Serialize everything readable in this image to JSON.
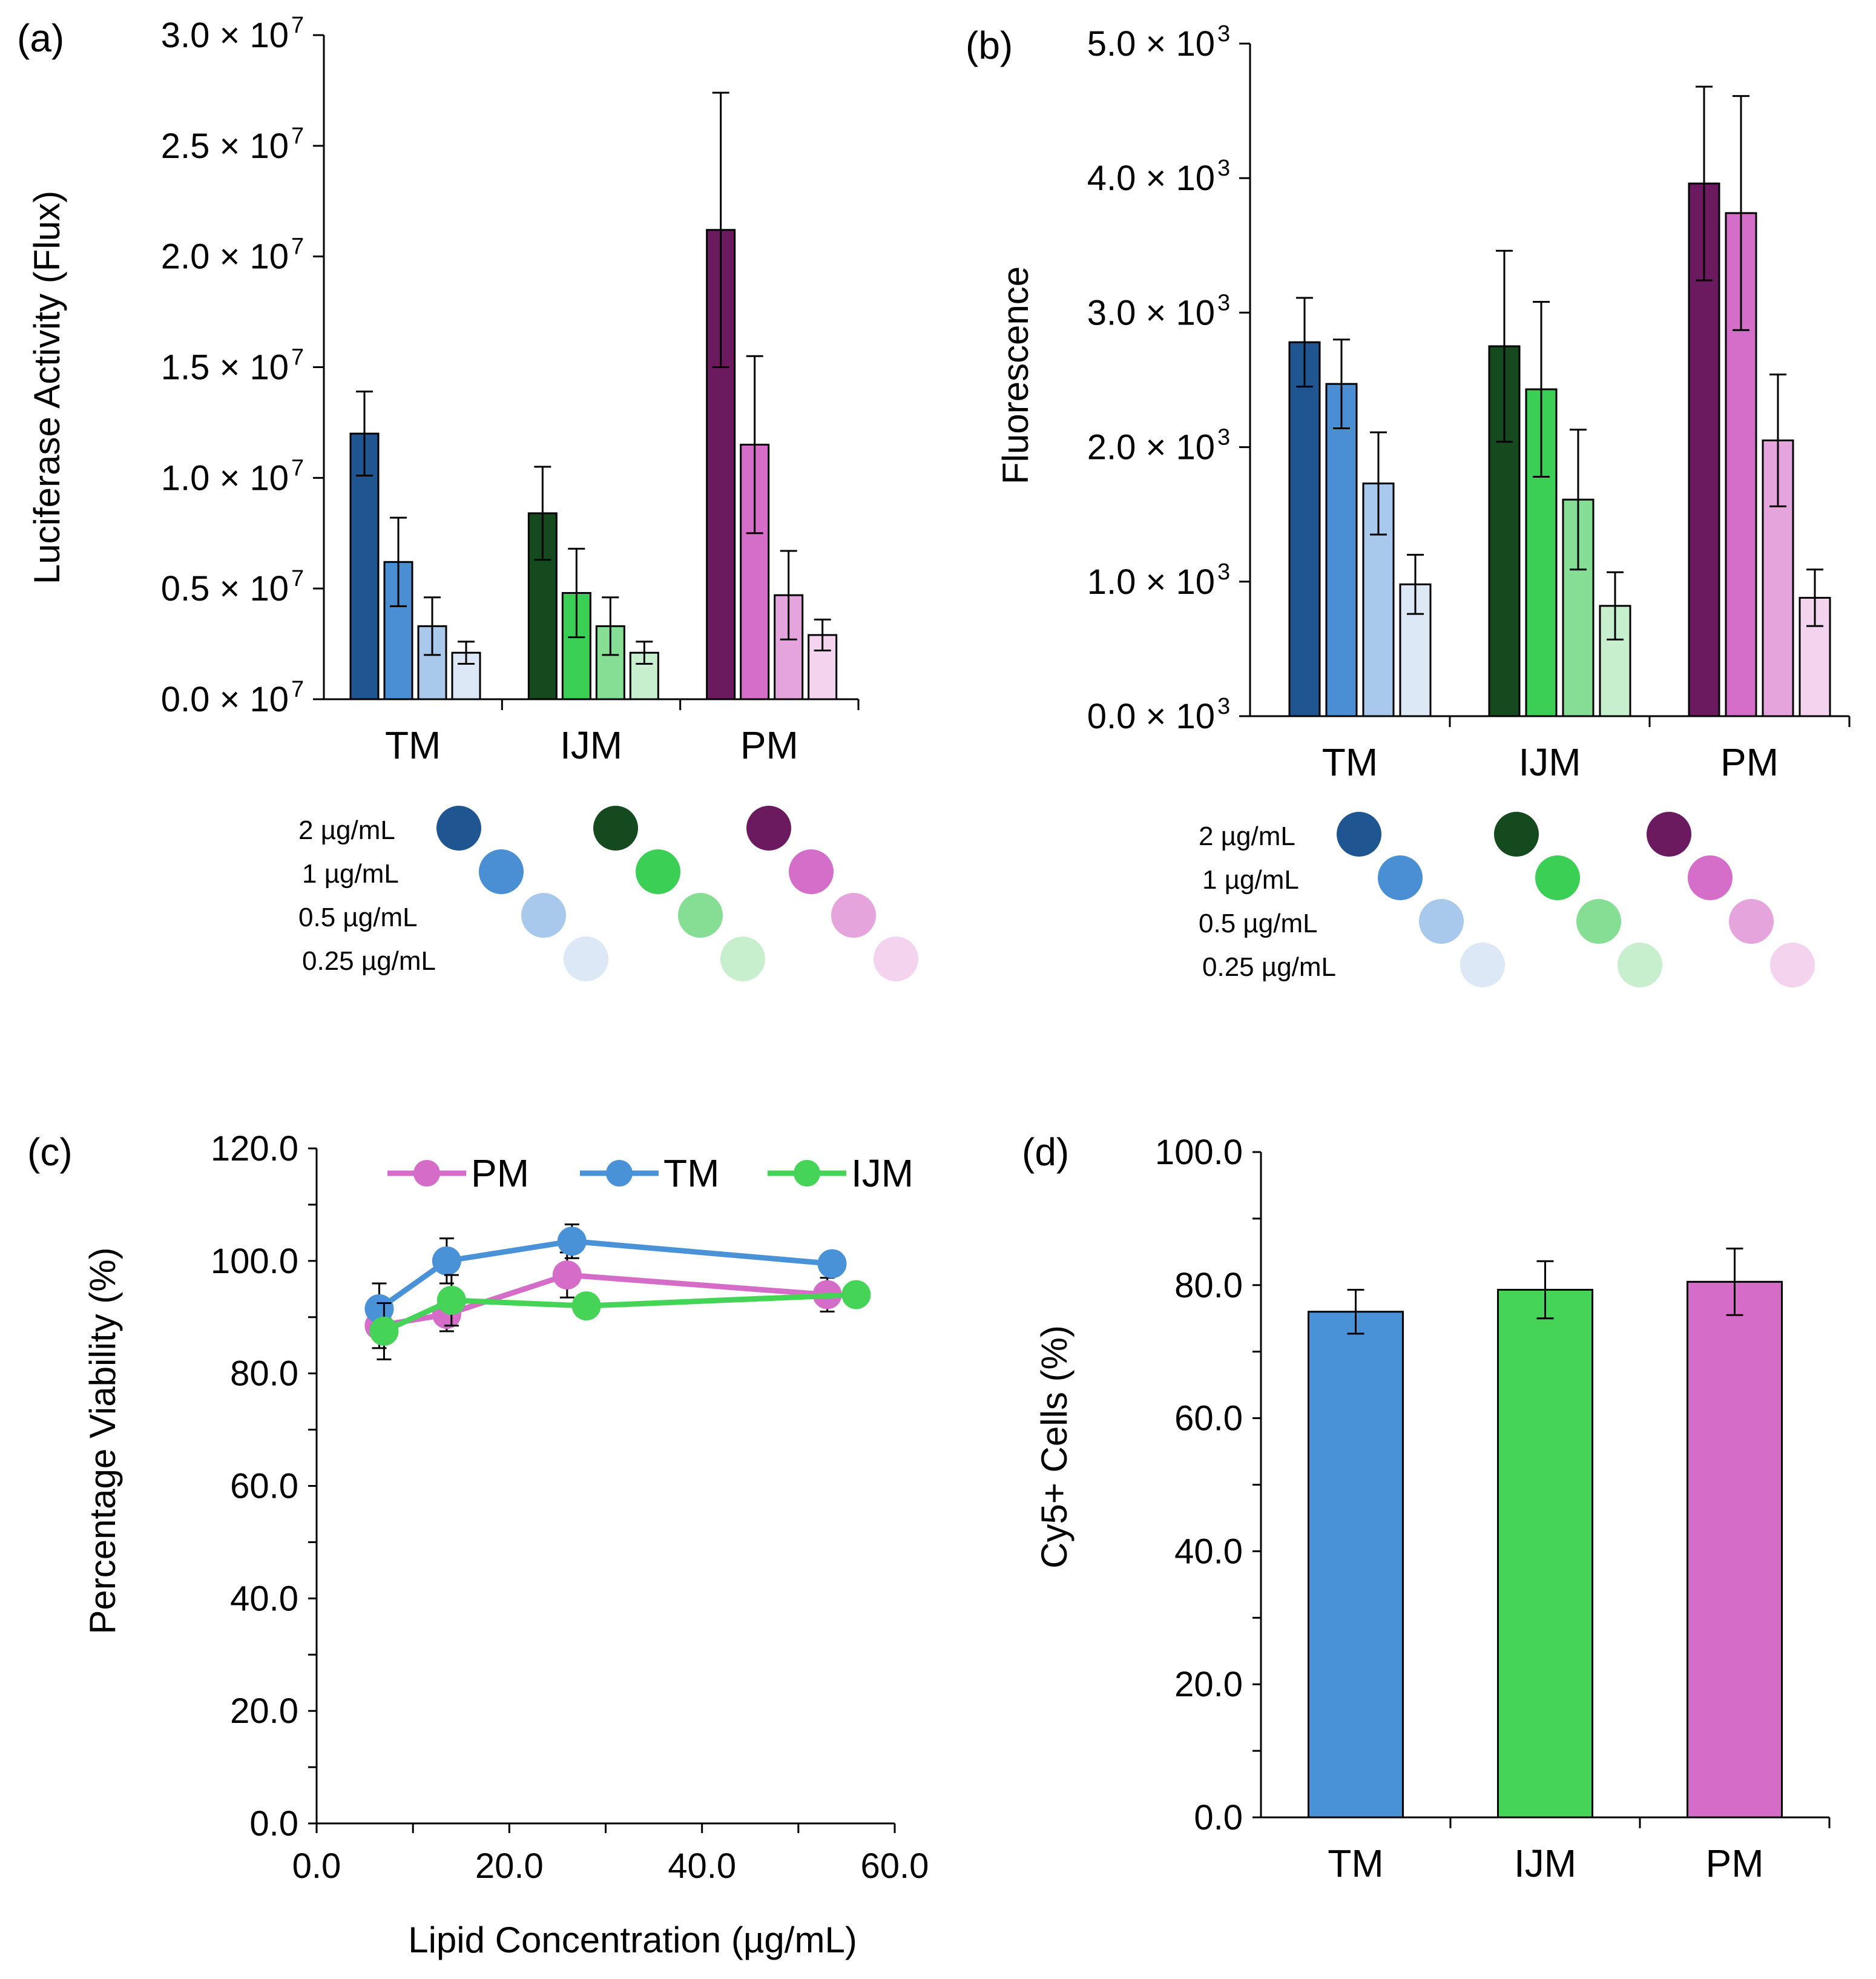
{
  "palette": {
    "TM": [
      "#1f5591",
      "#4a8fd4",
      "#a8c8ec",
      "#dce8f5"
    ],
    "IJM": [
      "#144a1e",
      "#3ccf55",
      "#86de94",
      "#c8efcd"
    ],
    "PM": [
      "#6b1a5f",
      "#d46ec8",
      "#e6a4dc",
      "#f3d3ee"
    ],
    "single": {
      "TM": "#4a92d8",
      "IJM": "#45d358",
      "PM": "#d46cc8"
    }
  },
  "legend_ab": {
    "labels": [
      "2 µg/mL",
      "1 µg/mL",
      "0.5 µg/mL",
      "0.25 µg/mL"
    ]
  },
  "chart_data": [
    {
      "panel": "(a)",
      "type": "bar",
      "ylabel": "Luciferase Activity (Flux)",
      "ylim": [
        0,
        3.0
      ],
      "yticks": [
        0.0,
        0.5,
        1.0,
        1.5,
        2.0,
        2.5,
        3.0
      ],
      "ytick_labels": [
        "0.0 × 10",
        "0.5 × 10",
        "1.0 × 10",
        "1.5 × 10",
        "2.0 × 10",
        "2.5 × 10",
        "3.0 × 10"
      ],
      "ytick_exponent": "7",
      "categories": [
        "TM",
        "IJM",
        "PM"
      ],
      "series": [
        {
          "name": "2 µg/mL",
          "values": [
            1.2,
            0.84,
            2.12
          ],
          "errors": [
            0.19,
            0.21,
            0.62
          ]
        },
        {
          "name": "1 µg/mL",
          "values": [
            0.62,
            0.48,
            1.15
          ],
          "errors": [
            0.2,
            0.2,
            0.4
          ]
        },
        {
          "name": "0.5 µg/mL",
          "values": [
            0.33,
            0.33,
            0.47
          ],
          "errors": [
            0.13,
            0.13,
            0.2
          ]
        },
        {
          "name": "0.25 µg/mL",
          "values": [
            0.21,
            0.21,
            0.29
          ],
          "errors": [
            0.05,
            0.05,
            0.07
          ]
        }
      ]
    },
    {
      "panel": "(b)",
      "type": "bar",
      "ylabel": "Fluorescence",
      "ylim": [
        0,
        5.0
      ],
      "yticks": [
        0.0,
        1.0,
        2.0,
        3.0,
        4.0,
        5.0
      ],
      "ytick_labels": [
        "0.0 × 10",
        "1.0 × 10",
        "2.0 × 10",
        "3.0 × 10",
        "4.0 × 10",
        "5.0 × 10"
      ],
      "ytick_exponent": "3",
      "categories": [
        "TM",
        "IJM",
        "PM"
      ],
      "series": [
        {
          "name": "2 µg/mL",
          "values": [
            2.78,
            2.75,
            3.96
          ],
          "errors": [
            0.33,
            0.71,
            0.72
          ]
        },
        {
          "name": "1 µg/mL",
          "values": [
            2.47,
            2.43,
            3.74
          ],
          "errors": [
            0.33,
            0.65,
            0.87
          ]
        },
        {
          "name": "0.5 µg/mL",
          "values": [
            1.73,
            1.61,
            2.05
          ],
          "errors": [
            0.38,
            0.52,
            0.49
          ]
        },
        {
          "name": "0.25 µg/mL",
          "values": [
            0.98,
            0.82,
            0.88
          ],
          "errors": [
            0.22,
            0.25,
            0.21
          ]
        }
      ]
    },
    {
      "panel": "(c)",
      "type": "line",
      "xlabel": "Lipid Concentration (µg/mL)",
      "ylabel": "Percentage Viability (%)",
      "xlim": [
        0,
        60
      ],
      "ylim": [
        0,
        120
      ],
      "xticks": [
        0.0,
        20.0,
        40.0,
        60.0
      ],
      "xtick_labels": [
        "0.0",
        "20.0",
        "40.0",
        "60.0"
      ],
      "yticks": [
        0.0,
        20.0,
        40.0,
        60.0,
        80.0,
        100.0,
        120.0
      ],
      "ytick_labels": [
        "0.0",
        "20.0",
        "40.0",
        "60.0",
        "80.0",
        "100.0",
        "120.0"
      ],
      "legend": [
        "PM",
        "TM",
        "IJM"
      ],
      "series": [
        {
          "name": "PM",
          "x": [
            6.5,
            13.5,
            26.0,
            53.0
          ],
          "y": [
            88.5,
            90.5,
            97.5,
            94.0
          ],
          "errors": [
            4.0,
            3.0,
            4.0,
            3.0
          ]
        },
        {
          "name": "TM",
          "x": [
            6.5,
            13.5,
            26.5,
            53.5
          ],
          "y": [
            91.5,
            100.0,
            103.5,
            99.5
          ],
          "errors": [
            4.5,
            4.0,
            3.0,
            2.0
          ]
        },
        {
          "name": "IJM",
          "x": [
            7.0,
            14.0,
            28.0,
            56.0
          ],
          "y": [
            87.5,
            93.0,
            92.0,
            94.0
          ],
          "errors": [
            5.0,
            4.5,
            2.0,
            2.0
          ]
        }
      ]
    },
    {
      "panel": "(d)",
      "type": "bar",
      "ylabel": "Cy5+ Cells (%)",
      "ylim": [
        0,
        100
      ],
      "yticks": [
        0.0,
        20.0,
        40.0,
        60.0,
        80.0,
        100.0
      ],
      "ytick_labels": [
        "0.0",
        "20.0",
        "40.0",
        "60.0",
        "80.0",
        "100.0"
      ],
      "categories": [
        "TM",
        "IJM",
        "PM"
      ],
      "values": [
        76.0,
        79.3,
        80.5
      ],
      "errors": [
        3.3,
        4.3,
        5.0
      ]
    }
  ]
}
